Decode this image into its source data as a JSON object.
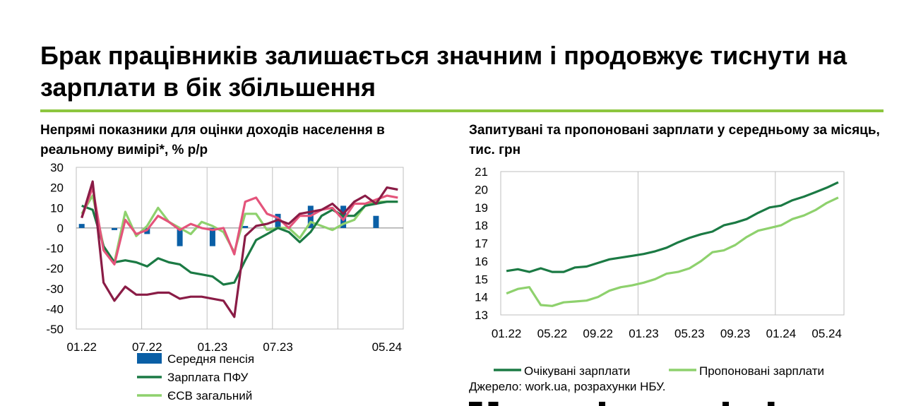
{
  "page_title": "Брак працівників залишається значним і продовжує тиснути на зарплати в бік збільшення",
  "colors": {
    "rule": "#8dc63f",
    "dark_green": "#1b7a44",
    "light_green": "#8ed16d",
    "blue": "#0a5fa6",
    "maroon": "#8a1c46",
    "pink": "#e4547b",
    "grid": "#bfbfbf"
  },
  "source": "Джерело: work.ua, розрахунки НБУ.",
  "chart_data": [
    {
      "type": "bar+line",
      "title": "Непрямі показники для оцінки доходів населення в реальному вимірі*, % р/р",
      "ylim": [
        -50,
        30
      ],
      "yticks": [
        30,
        20,
        10,
        0,
        -10,
        -20,
        -30,
        -40,
        -50
      ],
      "x_start": "01.22",
      "n_points": 30,
      "xtick_labels": [
        {
          "i": 0,
          "label": "01.22"
        },
        {
          "i": 6,
          "label": "07.22"
        },
        {
          "i": 12,
          "label": "01.23"
        },
        {
          "i": 18,
          "label": "07.23"
        },
        {
          "i": 28,
          "label": "05.24"
        }
      ],
      "legend": [
        "Середня пенсія",
        "Зарплата ПФУ",
        "ЄСВ загальний"
      ],
      "bars": {
        "name": "Середня пенсія",
        "color": "#0a5fa6",
        "points": [
          {
            "i": 0,
            "value": 2
          },
          {
            "i": 3,
            "value": 0
          },
          {
            "i": 6,
            "value": -3
          },
          {
            "i": 9,
            "value": -9
          },
          {
            "i": 12,
            "value": -9
          },
          {
            "i": 15,
            "value": 1
          },
          {
            "i": 18,
            "value": 7
          },
          {
            "i": 21,
            "value": 11
          },
          {
            "i": 24,
            "value": 11
          },
          {
            "i": 27,
            "value": 6
          }
        ]
      },
      "series": [
        {
          "name": "Зарплата ПФУ",
          "color": "#1b7a44",
          "values": [
            11,
            9,
            -9,
            -17,
            -16,
            -17,
            -19,
            -15,
            -17,
            -18,
            -22,
            -23,
            -24,
            -28,
            -27,
            -16,
            -6,
            -3,
            0,
            -2,
            -7,
            -2,
            6,
            9,
            6,
            6,
            11,
            12,
            13,
            13
          ]
        },
        {
          "name": "ЄСВ загальний",
          "color": "#8ed16d",
          "values": [
            7,
            16,
            -9,
            -17,
            8,
            -4,
            1,
            10,
            3,
            0,
            -3,
            3,
            1,
            -2,
            -12,
            7,
            7,
            -1,
            0,
            0,
            -5,
            3,
            1,
            -1,
            2,
            4,
            11,
            13,
            13,
            13
          ]
        },
        {
          "color": "#8a1c46",
          "values": [
            5,
            23,
            -27,
            -36,
            -29,
            -33,
            -33,
            -32,
            -32,
            -35,
            -34,
            -34,
            -35,
            -36,
            -44,
            -4,
            1,
            2,
            4,
            2,
            7,
            8,
            9,
            12,
            7,
            13,
            16,
            12,
            20,
            19
          ]
        },
        {
          "color": "#e4547b",
          "values": [
            5,
            20,
            -11,
            -18,
            4,
            -3,
            -1,
            6,
            3,
            -1,
            2,
            0,
            -1,
            0,
            -13,
            13,
            15,
            7,
            5,
            0,
            6,
            6,
            9,
            10,
            4,
            12,
            12,
            14,
            16,
            15
          ]
        }
      ]
    },
    {
      "type": "line",
      "title": "Запитувані та пропоновані зарплати у середньому за місяць, тис. грн",
      "ylim": [
        13,
        21
      ],
      "yticks": [
        21,
        20,
        19,
        18,
        17,
        16,
        15,
        14,
        13
      ],
      "x_start": "01.22",
      "n_points": 30,
      "xtick_labels": [
        {
          "i": 0,
          "label": "01.22"
        },
        {
          "i": 4,
          "label": "05.22"
        },
        {
          "i": 8,
          "label": "09.22"
        },
        {
          "i": 12,
          "label": "01.23"
        },
        {
          "i": 16,
          "label": "05.23"
        },
        {
          "i": 20,
          "label": "09.23"
        },
        {
          "i": 24,
          "label": "01.24"
        },
        {
          "i": 28,
          "label": "05.24"
        }
      ],
      "legend": [
        "Очікувані зарплати",
        "Пропоновані зарплати"
      ],
      "series": [
        {
          "name": "Очікувані зарплати",
          "color": "#1b7a44",
          "values": [
            15.45,
            15.55,
            15.4,
            15.6,
            15.4,
            15.4,
            15.65,
            15.7,
            15.9,
            16.1,
            16.2,
            16.3,
            16.4,
            16.55,
            16.75,
            17.05,
            17.3,
            17.5,
            17.65,
            18.0,
            18.15,
            18.35,
            18.7,
            19.0,
            19.1,
            19.4,
            19.6,
            19.85,
            20.1,
            20.4
          ]
        },
        {
          "name": "Пропоновані зарплати",
          "color": "#8ed16d",
          "values": [
            14.2,
            14.45,
            14.55,
            13.55,
            13.5,
            13.7,
            13.75,
            13.8,
            14.0,
            14.35,
            14.55,
            14.65,
            14.8,
            15.0,
            15.3,
            15.4,
            15.6,
            16.0,
            16.5,
            16.6,
            16.9,
            17.35,
            17.7,
            17.85,
            18.0,
            18.35,
            18.55,
            18.85,
            19.25,
            19.55
          ]
        }
      ]
    }
  ]
}
